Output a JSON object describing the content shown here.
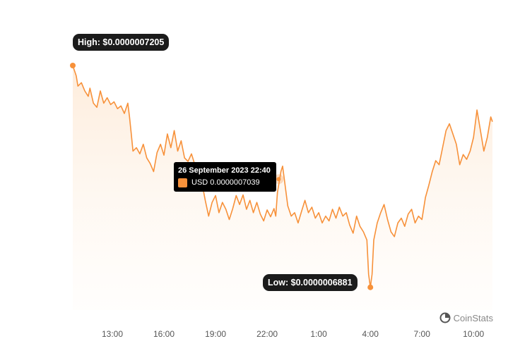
{
  "chart_data": {
    "type": "area",
    "currency": "USD",
    "x_ticks": [
      "13:00",
      "16:00",
      "19:00",
      "22:00",
      "1:00",
      "4:00",
      "7:00",
      "10:00"
    ],
    "x_tick_hours": [
      13,
      16,
      19,
      22,
      25,
      28,
      31,
      34
    ],
    "xlim": [
      10.7,
      34.4
    ],
    "ylim": [
      6.858e-07,
      7.239e-07
    ],
    "series": [
      {
        "color": "#f7913a",
        "points": [
          [
            10.7,
            7.205e-07
          ],
          [
            10.9,
            7.19e-07
          ],
          [
            11.0,
            7.175e-07
          ],
          [
            11.2,
            7.18e-07
          ],
          [
            11.4,
            7.168e-07
          ],
          [
            11.6,
            7.16e-07
          ],
          [
            11.7,
            7.172e-07
          ],
          [
            11.9,
            7.15e-07
          ],
          [
            12.1,
            7.144e-07
          ],
          [
            12.3,
            7.168e-07
          ],
          [
            12.5,
            7.15e-07
          ],
          [
            12.7,
            7.158e-07
          ],
          [
            12.9,
            7.148e-07
          ],
          [
            13.1,
            7.152e-07
          ],
          [
            13.3,
            7.142e-07
          ],
          [
            13.5,
            7.146e-07
          ],
          [
            13.7,
            7.135e-07
          ],
          [
            13.9,
            7.15e-07
          ],
          [
            14.0,
            7.13e-07
          ],
          [
            14.1,
            7.105e-07
          ],
          [
            14.2,
            7.08e-07
          ],
          [
            14.4,
            7.085e-07
          ],
          [
            14.6,
            7.076e-07
          ],
          [
            14.8,
            7.09e-07
          ],
          [
            15.0,
            7.07e-07
          ],
          [
            15.2,
            7.062e-07
          ],
          [
            15.4,
            7.05e-07
          ],
          [
            15.6,
            7.078e-07
          ],
          [
            15.8,
            7.09e-07
          ],
          [
            16.0,
            7.074e-07
          ],
          [
            16.2,
            7.105e-07
          ],
          [
            16.4,
            7.085e-07
          ],
          [
            16.6,
            7.11e-07
          ],
          [
            16.8,
            7.08e-07
          ],
          [
            17.0,
            7.095e-07
          ],
          [
            17.2,
            7.07e-07
          ],
          [
            17.4,
            7.065e-07
          ],
          [
            17.6,
            7.076e-07
          ],
          [
            17.8,
            7.06e-07
          ],
          [
            18.0,
            7.048e-07
          ],
          [
            18.2,
            7.035e-07
          ],
          [
            18.4,
            7.008e-07
          ],
          [
            18.6,
            6.985e-07
          ],
          [
            18.8,
            7.005e-07
          ],
          [
            19.0,
            7.015e-07
          ],
          [
            19.2,
            6.99e-07
          ],
          [
            19.4,
            7.005e-07
          ],
          [
            19.6,
            6.995e-07
          ],
          [
            19.8,
            6.98e-07
          ],
          [
            20.0,
            6.996e-07
          ],
          [
            20.2,
            7.015e-07
          ],
          [
            20.4,
            7.002e-07
          ],
          [
            20.6,
            7.016e-07
          ],
          [
            20.8,
            6.995e-07
          ],
          [
            21.0,
            7.008e-07
          ],
          [
            21.2,
            6.99e-07
          ],
          [
            21.4,
            7.005e-07
          ],
          [
            21.6,
            6.988e-07
          ],
          [
            21.8,
            6.978e-07
          ],
          [
            22.0,
            6.994e-07
          ],
          [
            22.2,
            6.984e-07
          ],
          [
            22.4,
            6.996e-07
          ],
          [
            22.5,
            6.985e-07
          ],
          [
            22.6,
            7.02e-07
          ],
          [
            22.8,
            7.05e-07
          ],
          [
            22.9,
            7.058e-07
          ],
          [
            23.0,
            7.039e-07
          ],
          [
            23.2,
            7e-07
          ],
          [
            23.4,
            6.985e-07
          ],
          [
            23.6,
            6.99e-07
          ],
          [
            23.8,
            6.975e-07
          ],
          [
            24.0,
            6.992e-07
          ],
          [
            24.2,
            7.008e-07
          ],
          [
            24.4,
            6.99e-07
          ],
          [
            24.6,
            6.998e-07
          ],
          [
            24.8,
            6.982e-07
          ],
          [
            25.0,
            6.99e-07
          ],
          [
            25.2,
            6.975e-07
          ],
          [
            25.4,
            6.985e-07
          ],
          [
            25.6,
            6.978e-07
          ],
          [
            25.8,
            6.995e-07
          ],
          [
            26.0,
            6.982e-07
          ],
          [
            26.2,
            6.998e-07
          ],
          [
            26.4,
            6.985e-07
          ],
          [
            26.6,
            6.99e-07
          ],
          [
            26.8,
            6.972e-07
          ],
          [
            27.0,
            6.96e-07
          ],
          [
            27.2,
            6.985e-07
          ],
          [
            27.4,
            6.97e-07
          ],
          [
            27.6,
            6.962e-07
          ],
          [
            27.8,
            6.95e-07
          ],
          [
            27.9,
            6.9e-07
          ],
          [
            28.0,
            6.881e-07
          ],
          [
            28.1,
            6.9e-07
          ],
          [
            28.2,
            6.95e-07
          ],
          [
            28.4,
            6.975e-07
          ],
          [
            28.6,
            6.99e-07
          ],
          [
            28.8,
            7.002e-07
          ],
          [
            29.0,
            6.98e-07
          ],
          [
            29.2,
            6.962e-07
          ],
          [
            29.4,
            6.955e-07
          ],
          [
            29.6,
            6.975e-07
          ],
          [
            29.8,
            6.982e-07
          ],
          [
            30.0,
            6.97e-07
          ],
          [
            30.2,
            6.988e-07
          ],
          [
            30.4,
            6.995e-07
          ],
          [
            30.6,
            6.975e-07
          ],
          [
            30.8,
            6.985e-07
          ],
          [
            31.0,
            6.98e-07
          ],
          [
            31.2,
            7.012e-07
          ],
          [
            31.4,
            7.03e-07
          ],
          [
            31.6,
            7.05e-07
          ],
          [
            31.8,
            7.066e-07
          ],
          [
            32.0,
            7.06e-07
          ],
          [
            32.2,
            7.085e-07
          ],
          [
            32.4,
            7.11e-07
          ],
          [
            32.6,
            7.12e-07
          ],
          [
            32.8,
            7.105e-07
          ],
          [
            33.0,
            7.09e-07
          ],
          [
            33.2,
            7.06e-07
          ],
          [
            33.4,
            7.075e-07
          ],
          [
            33.6,
            7.068e-07
          ],
          [
            33.8,
            7.08e-07
          ],
          [
            34.0,
            7.1e-07
          ],
          [
            34.2,
            7.14e-07
          ],
          [
            34.4,
            7.11e-07
          ],
          [
            34.6,
            7.08e-07
          ],
          [
            34.8,
            7.1e-07
          ],
          [
            35.0,
            7.13e-07
          ],
          [
            35.1,
            7.123e-07
          ]
        ]
      }
    ],
    "high": {
      "label": "High: $0.0000007205",
      "x": 10.7,
      "y": 7.205e-07
    },
    "low": {
      "label": "Low: $0.0000006881",
      "x": 28.0,
      "y": 6.881e-07
    },
    "tooltip": {
      "date": "26 September 2023 22:40",
      "value": "USD 0.0000007039",
      "x": 22.67,
      "y": 7.039e-07
    }
  },
  "brand": {
    "name": "CoinStats",
    "icon": "coinstats-logo-icon"
  }
}
